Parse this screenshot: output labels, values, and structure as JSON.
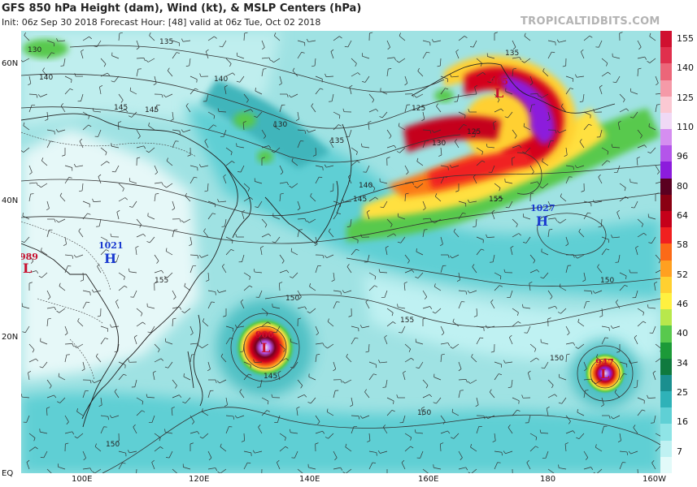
{
  "header": {
    "title": "GFS 850 hPa Height (dam), Wind (kt), & MSLP Centers (hPa)",
    "subtitle": "Init: 06z Sep 30 2018   Forecast Hour: [48]   valid at 06z Tue, Oct 02 2018",
    "brand": "TROPICALTIDBITS.COM"
  },
  "lat_labels": [
    "60N",
    "40N",
    "20N",
    "EQ"
  ],
  "lon_labels": [
    "100E",
    "120E",
    "140E",
    "160E",
    "180",
    "160W"
  ],
  "pressure_centers": [
    {
      "type": "L",
      "value": "989"
    },
    {
      "type": "H",
      "value": "1021"
    },
    {
      "type": "H",
      "value": "1027"
    },
    {
      "type": "L",
      "value": "965"
    },
    {
      "type": "L",
      "value": "900"
    },
    {
      "type": "L",
      "value": "947"
    }
  ],
  "contour_labels": [
    "130",
    "135",
    "140",
    "145",
    "125",
    "130",
    "135",
    "140",
    "145",
    "130",
    "125",
    "135",
    "150",
    "155",
    "155",
    "150",
    "150",
    "145",
    "150",
    "150",
    "140",
    "145",
    "155"
  ],
  "colorbar": {
    "labels": [
      "155",
      "140",
      "125",
      "110",
      "96",
      "80",
      "64",
      "58",
      "52",
      "46",
      "40",
      "34",
      "25",
      "16",
      "7"
    ],
    "colors": [
      "#d01030",
      "#e0304d",
      "#ec6679",
      "#f59aa8",
      "#fbc9d3",
      "#f0d9f5",
      "#d58ef0",
      "#b455ea",
      "#8c1cdc",
      "#5a0020",
      "#8a0012",
      "#c5001a",
      "#f02020",
      "#fb6a18",
      "#ffa020",
      "#ffd030",
      "#fff040",
      "#b8e84c",
      "#58c94d",
      "#1c9a38",
      "#0f7a3e",
      "#1a8f8f",
      "#2fb2b8",
      "#5fd0d5",
      "#8fe4e6",
      "#bff1f2",
      "#e2faf9"
    ]
  }
}
